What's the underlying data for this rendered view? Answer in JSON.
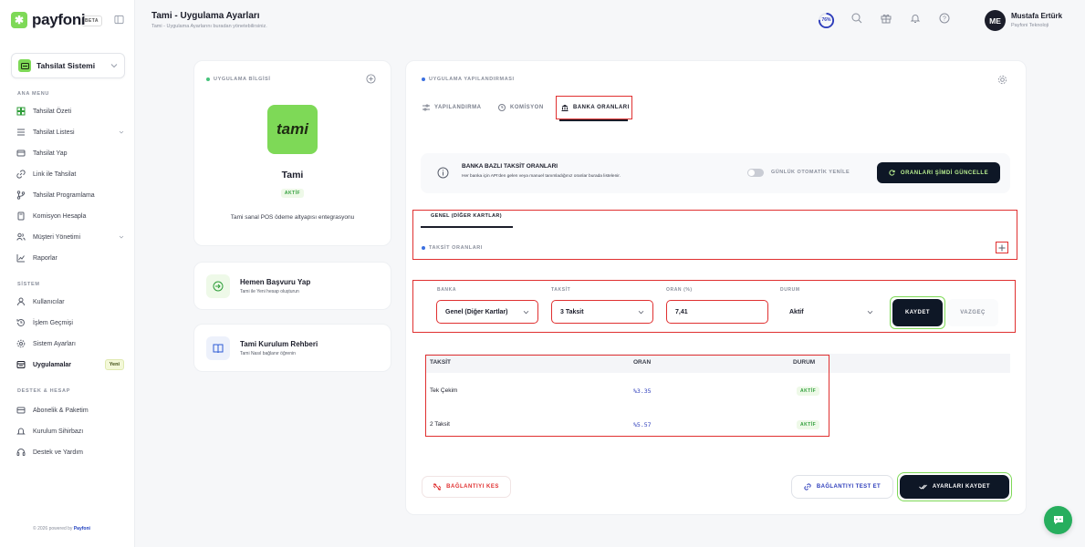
{
  "brand": {
    "name": "payfoni",
    "badge": "BETA",
    "accent": "#7ed957"
  },
  "tenant": {
    "label": "Tahsilat Sistemi"
  },
  "sidebar": {
    "main_title": "ANA MENU",
    "main_items": [
      {
        "label": "Tahsilat Özeti",
        "icon": "grid-icon"
      },
      {
        "label": "Tahsilat Listesi",
        "icon": "list-icon",
        "expandable": true
      },
      {
        "label": "Tahsilat Yap",
        "icon": "card-icon"
      },
      {
        "label": "Link ile Tahsilat",
        "icon": "link-icon"
      },
      {
        "label": "Tahsilat Programlama",
        "icon": "branch-icon"
      },
      {
        "label": "Komisyon Hesapla",
        "icon": "calculator-icon"
      },
      {
        "label": "Müşteri Yönetimi",
        "icon": "users-icon",
        "expandable": true
      },
      {
        "label": "Raporlar",
        "icon": "chart-icon"
      }
    ],
    "system_title": "SİSTEM",
    "system_items": [
      {
        "label": "Kullanıcılar",
        "icon": "user-icon"
      },
      {
        "label": "İşlem Geçmişi",
        "icon": "history-icon"
      },
      {
        "label": "Sistem Ayarları",
        "icon": "gear-icon"
      },
      {
        "label": "Uygulamalar",
        "icon": "apps-icon",
        "badge": "Yeni",
        "active": true
      }
    ],
    "support_title": "DESTEK & HESAP",
    "support_items": [
      {
        "label": "Abonelik & Paketim",
        "icon": "subscription-icon"
      },
      {
        "label": "Kurulum Sihirbazı",
        "icon": "bell-icon"
      },
      {
        "label": "Destek ve Yardım",
        "icon": "headset-icon"
      }
    ],
    "footer_prefix": "© 2026 powered by",
    "footer_brand": "Payfoni"
  },
  "header": {
    "title": "Tami - Uygulama Ayarları",
    "subtitle": "Tami - Uygulama Ayarlarını buradan yönetebilirsiniz.",
    "progress": "76%",
    "progress_value": 0.76,
    "user_name": "Mustafa Ertürk",
    "user_company": "Payfoni Teknoloji",
    "user_initials": "ME"
  },
  "app_card": {
    "section": "UYGULAMA BİLGİSİ",
    "logo_text": "tami",
    "name": "Tami",
    "status": "AKTİF",
    "description": "Tami sanal POS ödeme altyapısı entegrasyonu"
  },
  "apply_card": {
    "title": "Hemen Başvuru Yap",
    "subtitle": "Tami ile Yeni hesap oluşturun"
  },
  "guide_card": {
    "title": "Tami Kurulum Rehberi",
    "subtitle": "Tami Nasıl bağlanır öğrenin"
  },
  "config": {
    "section": "UYGULAMA YAPILANDIRMASI",
    "tabs": [
      "YAPILANDIRMA",
      "KOMİSYON",
      "BANKA ORANLARI"
    ],
    "info_title": "BANKA BAZLI TAKSİT ORANLARI",
    "info_text": "Her banka için API'den gelen veya manuel tanımladığınız oranlar burada listelenir.",
    "auto_refresh_label": "GÜNLÜK OTOMATİK YENİLE",
    "update_button": "ORANLARI ŞİMDİ GÜNCELLE",
    "bank_tab": "GENEL (DİĞER KARTLAR)",
    "rates_section": "TAKSİT ORANLARI",
    "form": {
      "bank_label": "BANKA",
      "bank_value": "Genel (Diğer Kartlar)",
      "installment_label": "TAKSİT",
      "installment_value": "3 Taksit",
      "rate_label": "ORAN (%)",
      "rate_value": "7,41",
      "status_label": "DURUM",
      "status_value": "Aktif",
      "save": "KAYDET",
      "cancel": "VAZGEÇ"
    },
    "table": {
      "headers": [
        "TAKSİT",
        "ORAN",
        "DURUM"
      ],
      "rows": [
        {
          "taksit": "Tek Çekim",
          "oran": "%3.35",
          "durum": "AKTİF"
        },
        {
          "taksit": "2 Taksit",
          "oran": "%5.57",
          "durum": "AKTİF"
        }
      ]
    },
    "disconnect": "BAĞLANTIYI KES",
    "test": "BAĞLANTIYI TEST ET",
    "save_settings": "AYARLARI KAYDET"
  }
}
